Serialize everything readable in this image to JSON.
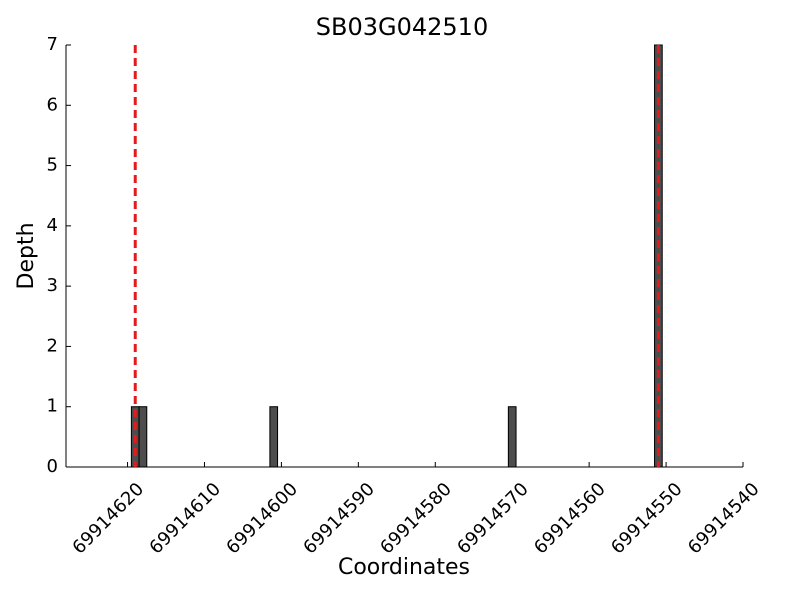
{
  "chart_data": {
    "type": "bar",
    "title": "SB03G042510",
    "x_label": "Coordinates",
    "y_label": "Depth",
    "x": [
      69914619,
      69914618,
      69914601,
      69914570,
      69914551
    ],
    "values": [
      1,
      1,
      1,
      1,
      7
    ],
    "color": "#4d4d4d",
    "xlim": [
      69914628,
      69914540
    ],
    "xticks": [
      69914620,
      69914610,
      69914600,
      69914590,
      69914580,
      69914570,
      69914560,
      69914550,
      69914540
    ],
    "ylim": [
      0,
      7
    ],
    "yticks": [
      0,
      1,
      2,
      3,
      4,
      5,
      6,
      7
    ],
    "vlines": [
      69914619,
      69914551
    ],
    "vline_color": "#e41a1c"
  }
}
